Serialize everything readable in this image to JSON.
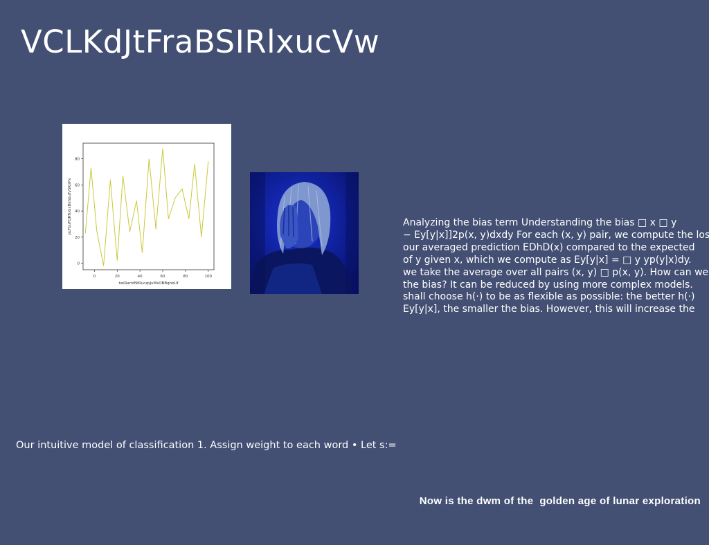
{
  "slide": {
    "title": "VCLKdJtFraBSIRlxucVw",
    "paragraph_lines": [
      "Analyzing the bias term Understanding the bias □ x □ y",
      "− Ey[y|x]]2p(x, y)dxdy For each (x, y) pair, we compute the loss",
      "our averaged prediction EDhD(x) compared to the expected",
      "of y given x, which we compute as Ey[y|x] = □ y yp(y|x)dy.",
      "we take the average over all pairs (x, y) □ p(x, y). How can we",
      "the bias? It can be reduced by using more complex models.",
      "shall choose h(·) to be as flexible as possible: the better h(·)",
      "Ey[y|x], the smaller the bias. However, this will increase the"
    ],
    "bullet_text": "Our intuitive model of classification 1. Assign weight to each word • Let s:=",
    "footer_text": "Now is the dwm of the  golden age of lunar exploration"
  },
  "chart_data": {
    "type": "line",
    "xlabel": "twlRamfNfRuczpJuMsOBBqhbUf",
    "ylabel": "pLFbuFQRTuGxBkhbuFySKjrPx",
    "xlim": [
      -10,
      105
    ],
    "ylim": [
      -5,
      92
    ],
    "xticks": [
      0,
      20,
      40,
      60,
      80,
      100
    ],
    "yticks": [
      0,
      20,
      40,
      60,
      80
    ],
    "grid": false,
    "series": [
      {
        "color": "#c9c93a",
        "x": [
          -8,
          -3,
          2,
          8,
          14,
          20,
          25,
          31,
          37,
          42,
          48,
          54,
          60,
          65,
          71,
          77,
          83,
          88,
          94,
          100
        ],
        "y": [
          23,
          73,
          25,
          -2,
          64,
          2,
          67,
          24,
          48,
          8,
          80,
          26,
          88,
          34,
          50,
          57,
          34,
          76,
          20,
          78
        ]
      }
    ]
  },
  "photo": {
    "icon": "person-portrait-blue-photo",
    "colors": {
      "background": "#0f1fa8",
      "shadow": "#081060",
      "highlight": "#8ea6d8"
    }
  }
}
